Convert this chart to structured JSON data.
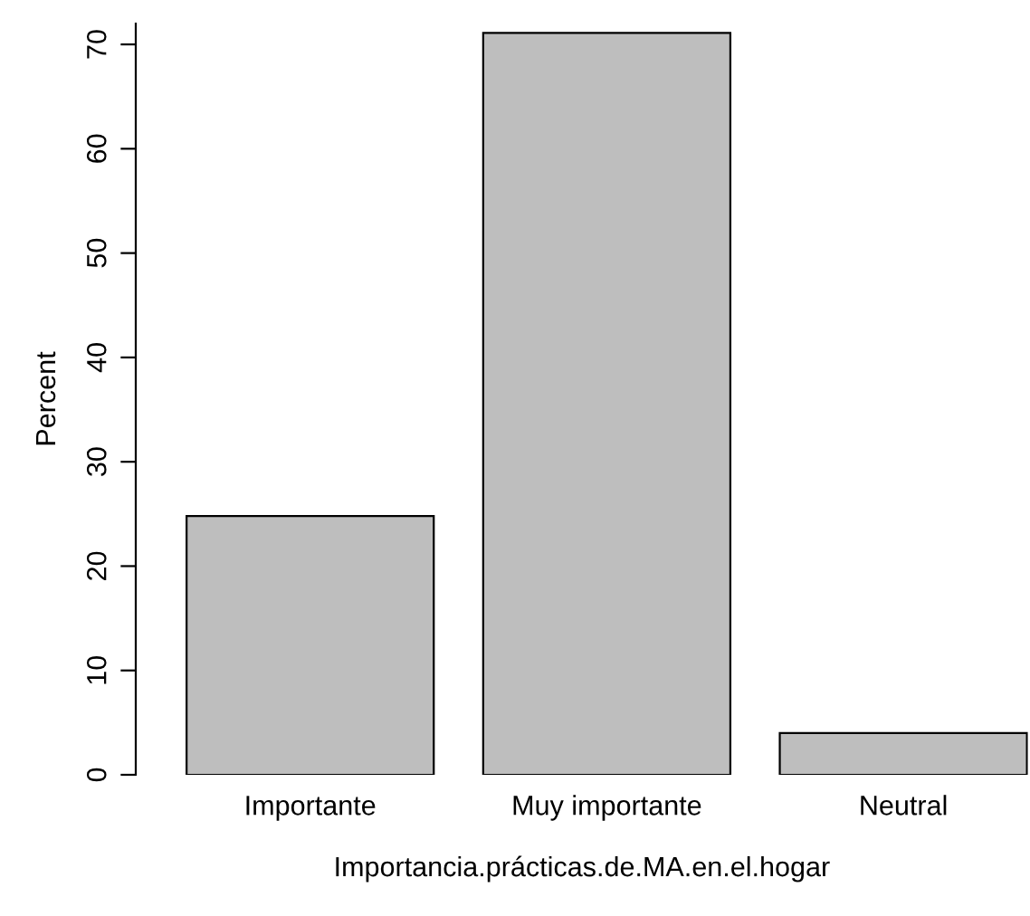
{
  "chart_data": {
    "type": "bar",
    "xlabel": "Importancia.prácticas.de.MA.en.el.hogar",
    "ylabel": "Percent",
    "categories": [
      "Importante",
      "Muy importante",
      "Neutral"
    ],
    "values": [
      24.8,
      71.1,
      4.0
    ],
    "color": "#bebebe",
    "ylim": [
      0,
      72
    ],
    "yticks": [
      0,
      10,
      20,
      30,
      40,
      50,
      60,
      70
    ],
    "grid": false,
    "legend": false
  }
}
